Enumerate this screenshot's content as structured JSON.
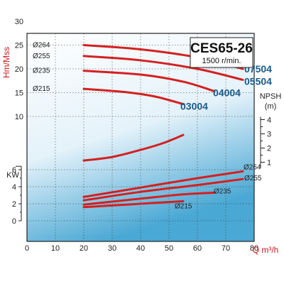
{
  "chart_data": {
    "type": "line",
    "title": "CES65-26",
    "subtitle": "1500 r/min.",
    "xlabel": "Q m³/h",
    "xlim": [
      0,
      90
    ],
    "xticks": [
      "0",
      "10",
      "20",
      "30",
      "40",
      "50",
      "60",
      "70",
      "80"
    ],
    "head_axis": {
      "label": "Hm/Mss",
      "ylim": [
        0,
        30
      ],
      "ticks": [
        "10",
        "15",
        "20",
        "25",
        "30"
      ]
    },
    "power_axis": {
      "label": "KW",
      "ylim": [
        0,
        7
      ],
      "ticks": [
        "0",
        "2",
        "4",
        "6"
      ]
    },
    "npsh_axis": {
      "label_line1": "NPSH",
      "label_line2": "(m)",
      "ticks": [
        "1",
        "2",
        "3",
        "4"
      ]
    },
    "colors": {
      "curve": "#d42020",
      "model": "#1a5a8a",
      "gradient_top": "#ffffff",
      "gradient_bottom": "#4aa8d4"
    },
    "head_curves": [
      {
        "name": "Ø264",
        "model": "07504",
        "x": [
          20,
          40,
          60,
          76
        ],
        "y": [
          25.0,
          24.1,
          22.4,
          20.0
        ]
      },
      {
        "name": "Ø255",
        "model": "05504",
        "x": [
          20,
          40,
          60,
          76
        ],
        "y": [
          22.7,
          21.8,
          20.0,
          17.7
        ]
      },
      {
        "name": "Ø235",
        "model": "04004",
        "x": [
          20,
          40,
          55,
          66
        ],
        "y": [
          19.6,
          18.8,
          17.3,
          15.3
        ]
      },
      {
        "name": "Ø215",
        "model": "03004",
        "x": [
          20,
          35,
          45,
          55
        ],
        "y": [
          15.8,
          15.1,
          14.2,
          12.6
        ]
      }
    ],
    "npsh_curve": {
      "x": [
        20,
        30,
        40,
        48,
        55
      ],
      "y": [
        1.12,
        1.37,
        1.87,
        2.35,
        2.92
      ]
    },
    "power_curves": [
      {
        "name": "Ø264",
        "x": [
          20,
          40,
          60,
          76
        ],
        "y": [
          2.8,
          3.9,
          5.0,
          5.8
        ]
      },
      {
        "name": "Ø255",
        "x": [
          20,
          40,
          60,
          76
        ],
        "y": [
          2.4,
          3.4,
          4.2,
          4.9
        ]
      },
      {
        "name": "Ø235",
        "x": [
          20,
          40,
          55,
          66
        ],
        "y": [
          1.9,
          2.6,
          3.1,
          3.3
        ]
      },
      {
        "name": "Ø215",
        "x": [
          20,
          35,
          45,
          55
        ],
        "y": [
          1.6,
          1.9,
          2.1,
          2.3
        ]
      }
    ]
  }
}
